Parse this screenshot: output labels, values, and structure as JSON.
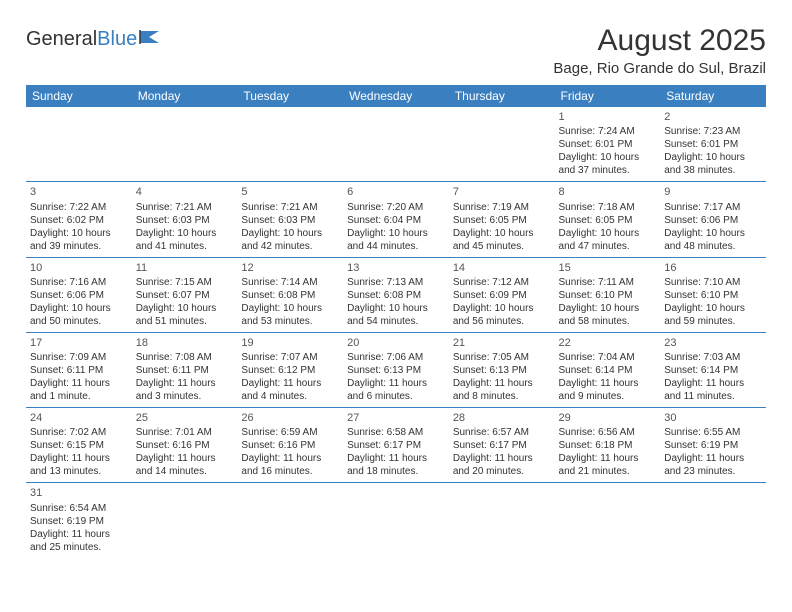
{
  "logo": {
    "part1": "General",
    "part2": "Blue"
  },
  "title": "August 2025",
  "location": "Bage, Rio Grande do Sul, Brazil",
  "header_bg": "#3a7fc0",
  "header_fg": "#ffffff",
  "border_color": "#3a7fc0",
  "text_color": "#333333",
  "day_headers": [
    "Sunday",
    "Monday",
    "Tuesday",
    "Wednesday",
    "Thursday",
    "Friday",
    "Saturday"
  ],
  "weeks": [
    [
      null,
      null,
      null,
      null,
      null,
      {
        "n": "1",
        "sunrise": "Sunrise: 7:24 AM",
        "sunset": "Sunset: 6:01 PM",
        "dl1": "Daylight: 10 hours",
        "dl2": "and 37 minutes."
      },
      {
        "n": "2",
        "sunrise": "Sunrise: 7:23 AM",
        "sunset": "Sunset: 6:01 PM",
        "dl1": "Daylight: 10 hours",
        "dl2": "and 38 minutes."
      }
    ],
    [
      {
        "n": "3",
        "sunrise": "Sunrise: 7:22 AM",
        "sunset": "Sunset: 6:02 PM",
        "dl1": "Daylight: 10 hours",
        "dl2": "and 39 minutes."
      },
      {
        "n": "4",
        "sunrise": "Sunrise: 7:21 AM",
        "sunset": "Sunset: 6:03 PM",
        "dl1": "Daylight: 10 hours",
        "dl2": "and 41 minutes."
      },
      {
        "n": "5",
        "sunrise": "Sunrise: 7:21 AM",
        "sunset": "Sunset: 6:03 PM",
        "dl1": "Daylight: 10 hours",
        "dl2": "and 42 minutes."
      },
      {
        "n": "6",
        "sunrise": "Sunrise: 7:20 AM",
        "sunset": "Sunset: 6:04 PM",
        "dl1": "Daylight: 10 hours",
        "dl2": "and 44 minutes."
      },
      {
        "n": "7",
        "sunrise": "Sunrise: 7:19 AM",
        "sunset": "Sunset: 6:05 PM",
        "dl1": "Daylight: 10 hours",
        "dl2": "and 45 minutes."
      },
      {
        "n": "8",
        "sunrise": "Sunrise: 7:18 AM",
        "sunset": "Sunset: 6:05 PM",
        "dl1": "Daylight: 10 hours",
        "dl2": "and 47 minutes."
      },
      {
        "n": "9",
        "sunrise": "Sunrise: 7:17 AM",
        "sunset": "Sunset: 6:06 PM",
        "dl1": "Daylight: 10 hours",
        "dl2": "and 48 minutes."
      }
    ],
    [
      {
        "n": "10",
        "sunrise": "Sunrise: 7:16 AM",
        "sunset": "Sunset: 6:06 PM",
        "dl1": "Daylight: 10 hours",
        "dl2": "and 50 minutes."
      },
      {
        "n": "11",
        "sunrise": "Sunrise: 7:15 AM",
        "sunset": "Sunset: 6:07 PM",
        "dl1": "Daylight: 10 hours",
        "dl2": "and 51 minutes."
      },
      {
        "n": "12",
        "sunrise": "Sunrise: 7:14 AM",
        "sunset": "Sunset: 6:08 PM",
        "dl1": "Daylight: 10 hours",
        "dl2": "and 53 minutes."
      },
      {
        "n": "13",
        "sunrise": "Sunrise: 7:13 AM",
        "sunset": "Sunset: 6:08 PM",
        "dl1": "Daylight: 10 hours",
        "dl2": "and 54 minutes."
      },
      {
        "n": "14",
        "sunrise": "Sunrise: 7:12 AM",
        "sunset": "Sunset: 6:09 PM",
        "dl1": "Daylight: 10 hours",
        "dl2": "and 56 minutes."
      },
      {
        "n": "15",
        "sunrise": "Sunrise: 7:11 AM",
        "sunset": "Sunset: 6:10 PM",
        "dl1": "Daylight: 10 hours",
        "dl2": "and 58 minutes."
      },
      {
        "n": "16",
        "sunrise": "Sunrise: 7:10 AM",
        "sunset": "Sunset: 6:10 PM",
        "dl1": "Daylight: 10 hours",
        "dl2": "and 59 minutes."
      }
    ],
    [
      {
        "n": "17",
        "sunrise": "Sunrise: 7:09 AM",
        "sunset": "Sunset: 6:11 PM",
        "dl1": "Daylight: 11 hours",
        "dl2": "and 1 minute."
      },
      {
        "n": "18",
        "sunrise": "Sunrise: 7:08 AM",
        "sunset": "Sunset: 6:11 PM",
        "dl1": "Daylight: 11 hours",
        "dl2": "and 3 minutes."
      },
      {
        "n": "19",
        "sunrise": "Sunrise: 7:07 AM",
        "sunset": "Sunset: 6:12 PM",
        "dl1": "Daylight: 11 hours",
        "dl2": "and 4 minutes."
      },
      {
        "n": "20",
        "sunrise": "Sunrise: 7:06 AM",
        "sunset": "Sunset: 6:13 PM",
        "dl1": "Daylight: 11 hours",
        "dl2": "and 6 minutes."
      },
      {
        "n": "21",
        "sunrise": "Sunrise: 7:05 AM",
        "sunset": "Sunset: 6:13 PM",
        "dl1": "Daylight: 11 hours",
        "dl2": "and 8 minutes."
      },
      {
        "n": "22",
        "sunrise": "Sunrise: 7:04 AM",
        "sunset": "Sunset: 6:14 PM",
        "dl1": "Daylight: 11 hours",
        "dl2": "and 9 minutes."
      },
      {
        "n": "23",
        "sunrise": "Sunrise: 7:03 AM",
        "sunset": "Sunset: 6:14 PM",
        "dl1": "Daylight: 11 hours",
        "dl2": "and 11 minutes."
      }
    ],
    [
      {
        "n": "24",
        "sunrise": "Sunrise: 7:02 AM",
        "sunset": "Sunset: 6:15 PM",
        "dl1": "Daylight: 11 hours",
        "dl2": "and 13 minutes."
      },
      {
        "n": "25",
        "sunrise": "Sunrise: 7:01 AM",
        "sunset": "Sunset: 6:16 PM",
        "dl1": "Daylight: 11 hours",
        "dl2": "and 14 minutes."
      },
      {
        "n": "26",
        "sunrise": "Sunrise: 6:59 AM",
        "sunset": "Sunset: 6:16 PM",
        "dl1": "Daylight: 11 hours",
        "dl2": "and 16 minutes."
      },
      {
        "n": "27",
        "sunrise": "Sunrise: 6:58 AM",
        "sunset": "Sunset: 6:17 PM",
        "dl1": "Daylight: 11 hours",
        "dl2": "and 18 minutes."
      },
      {
        "n": "28",
        "sunrise": "Sunrise: 6:57 AM",
        "sunset": "Sunset: 6:17 PM",
        "dl1": "Daylight: 11 hours",
        "dl2": "and 20 minutes."
      },
      {
        "n": "29",
        "sunrise": "Sunrise: 6:56 AM",
        "sunset": "Sunset: 6:18 PM",
        "dl1": "Daylight: 11 hours",
        "dl2": "and 21 minutes."
      },
      {
        "n": "30",
        "sunrise": "Sunrise: 6:55 AM",
        "sunset": "Sunset: 6:19 PM",
        "dl1": "Daylight: 11 hours",
        "dl2": "and 23 minutes."
      }
    ],
    [
      {
        "n": "31",
        "sunrise": "Sunrise: 6:54 AM",
        "sunset": "Sunset: 6:19 PM",
        "dl1": "Daylight: 11 hours",
        "dl2": "and 25 minutes."
      },
      null,
      null,
      null,
      null,
      null,
      null
    ]
  ]
}
